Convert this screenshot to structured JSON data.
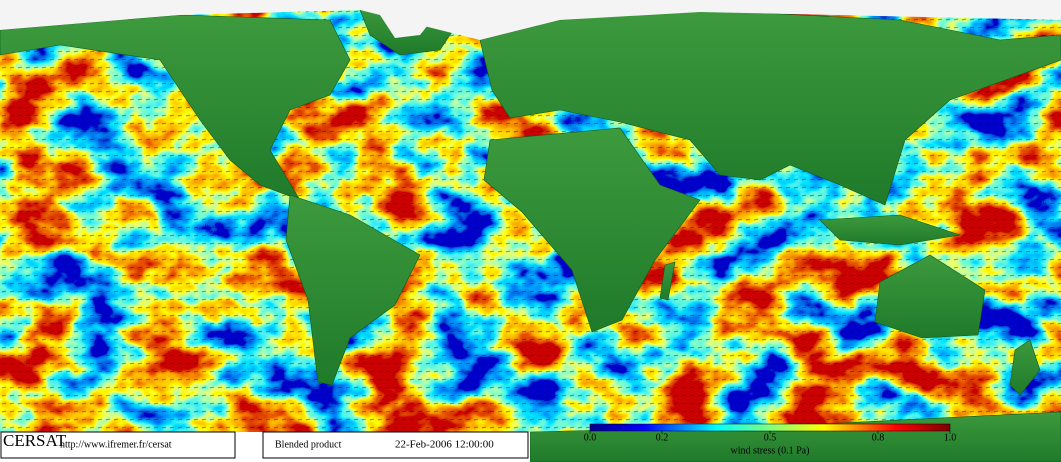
{
  "branding": {
    "logo": "CERSAT",
    "url": "http://www.ifremer.fr/cersat"
  },
  "product": {
    "name": "Blended product",
    "date": "22-Feb-2006 12:00:00"
  },
  "colorbar": {
    "label": "wind stress (0.1 Pa)",
    "lim": [
      0,
      1
    ],
    "ticks": [
      {
        "value": 0,
        "label": "0.0"
      },
      0.2,
      0.5,
      0.8,
      {
        "value": 1,
        "label": "1.0"
      }
    ]
  }
}
